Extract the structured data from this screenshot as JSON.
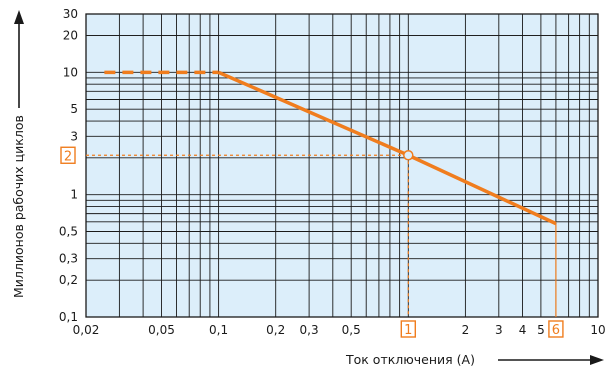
{
  "chart_data": {
    "type": "line",
    "title": "",
    "xlabel": "Ток отключения (А)",
    "ylabel": "Миллионов рабочих циклов",
    "x_scale": "log",
    "y_scale": "log",
    "xlim": [
      0.02,
      10
    ],
    "ylim": [
      0.1,
      30
    ],
    "grid": true,
    "x_major_ticks": [
      {
        "value": 0.02,
        "label": "0,02"
      },
      {
        "value": 0.05,
        "label": "0,05"
      },
      {
        "value": 0.1,
        "label": "0,1"
      },
      {
        "value": 0.2,
        "label": "0,2"
      },
      {
        "value": 0.3,
        "label": "0,3"
      },
      {
        "value": 0.5,
        "label": "0,5"
      },
      {
        "value": 2,
        "label": "2"
      },
      {
        "value": 3,
        "label": "3"
      },
      {
        "value": 4,
        "label": "4"
      },
      {
        "value": 5,
        "label": "5"
      },
      {
        "value": 10,
        "label": "10"
      }
    ],
    "y_major_ticks": [
      {
        "value": 0.1,
        "label": "0,1"
      },
      {
        "value": 0.2,
        "label": "0,2"
      },
      {
        "value": 0.3,
        "label": "0,3"
      },
      {
        "value": 0.5,
        "label": "0,5"
      },
      {
        "value": 1,
        "label": "1"
      },
      {
        "value": 3,
        "label": "3"
      },
      {
        "value": 5,
        "label": "5"
      },
      {
        "value": 10,
        "label": "10"
      },
      {
        "value": 20,
        "label": "20"
      },
      {
        "value": 30,
        "label": "30"
      }
    ],
    "series": [
      {
        "dashed_segment": {
          "x": [
            0.025,
            0.1
          ],
          "y": [
            10,
            10
          ]
        },
        "solid_segment": {
          "x": [
            0.1,
            1,
            6
          ],
          "y": [
            10,
            2.1,
            0.58
          ]
        }
      }
    ],
    "markers": [
      {
        "label": "1",
        "axis": "x",
        "value": 1,
        "meets_y": 2.1
      },
      {
        "label": "2",
        "axis": "y",
        "value": 2.1,
        "meets_x": 1
      },
      {
        "label": "6",
        "axis": "x",
        "value": 6,
        "meets_y": 0.58
      }
    ],
    "colors": {
      "background": "#dceefa",
      "grid": "#1a1a1a",
      "curve": "#f07d1e",
      "marker": "#f07d1e",
      "axis_arrow": "#1a1a1a"
    }
  }
}
